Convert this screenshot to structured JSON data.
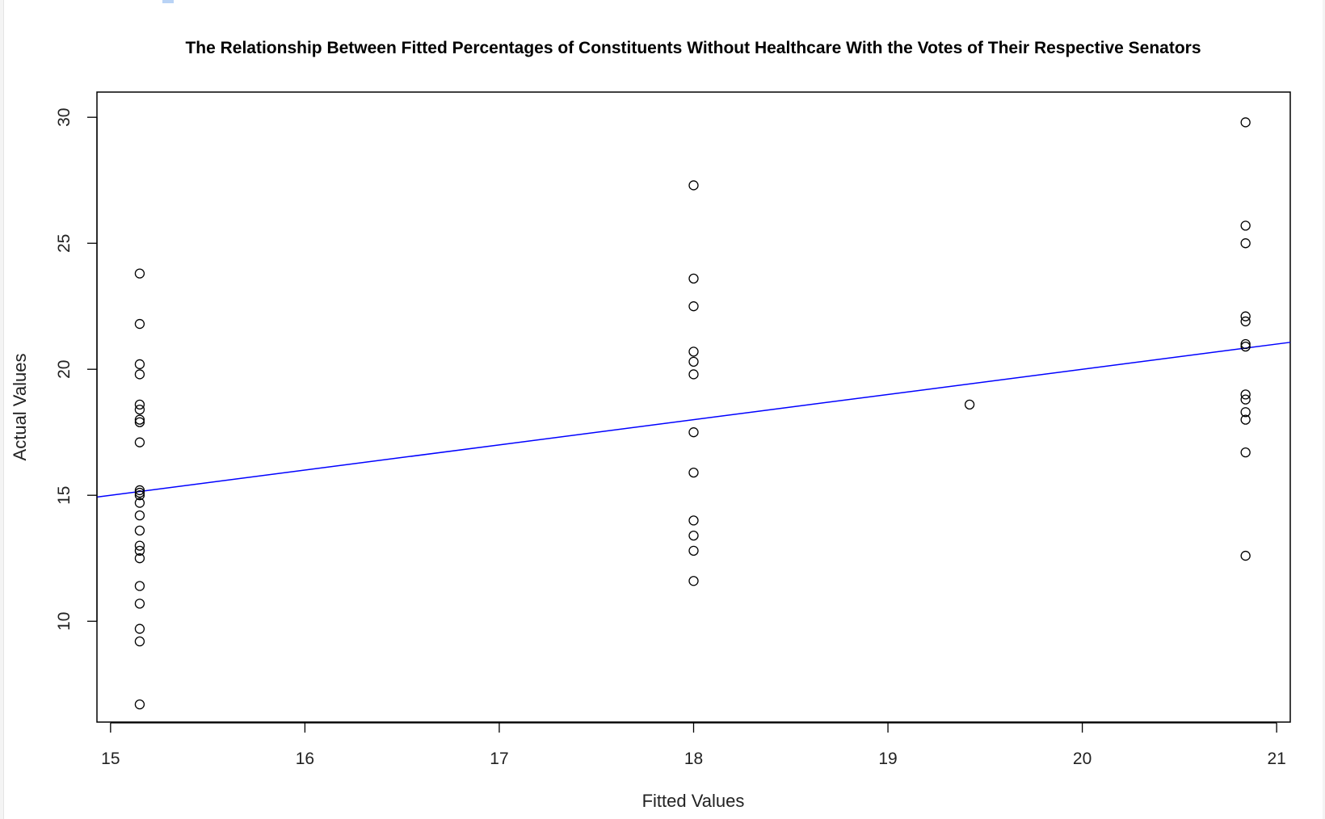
{
  "chart_data": {
    "type": "scatter",
    "title": "The Relationship Between Fitted Percentages of Constituents Without Healthcare With the Votes of Their Respective Senators",
    "xlabel": "Fitted Values",
    "ylabel": "Actual Values",
    "xlim": [
      14.93,
      21.07
    ],
    "ylim": [
      6.0,
      31.0
    ],
    "x_ticks": [
      15,
      16,
      17,
      18,
      19,
      20,
      21
    ],
    "y_ticks": [
      10,
      15,
      20,
      25,
      30
    ],
    "grid": false,
    "legend": "none",
    "marker": "open-circle",
    "points": [
      {
        "x": 15.15,
        "y": 23.8
      },
      {
        "x": 15.15,
        "y": 21.8
      },
      {
        "x": 15.15,
        "y": 20.2
      },
      {
        "x": 15.15,
        "y": 19.8
      },
      {
        "x": 15.15,
        "y": 18.6
      },
      {
        "x": 15.15,
        "y": 18.4
      },
      {
        "x": 15.15,
        "y": 18.0
      },
      {
        "x": 15.15,
        "y": 17.9
      },
      {
        "x": 15.15,
        "y": 17.1
      },
      {
        "x": 15.15,
        "y": 15.2
      },
      {
        "x": 15.15,
        "y": 15.1
      },
      {
        "x": 15.15,
        "y": 15.0
      },
      {
        "x": 15.15,
        "y": 14.7
      },
      {
        "x": 15.15,
        "y": 14.2
      },
      {
        "x": 15.15,
        "y": 13.6
      },
      {
        "x": 15.15,
        "y": 13.0
      },
      {
        "x": 15.15,
        "y": 12.8
      },
      {
        "x": 15.15,
        "y": 12.5
      },
      {
        "x": 15.15,
        "y": 11.4
      },
      {
        "x": 15.15,
        "y": 10.7
      },
      {
        "x": 15.15,
        "y": 9.7
      },
      {
        "x": 15.15,
        "y": 9.2
      },
      {
        "x": 15.15,
        "y": 6.7
      },
      {
        "x": 18.0,
        "y": 27.3
      },
      {
        "x": 18.0,
        "y": 23.6
      },
      {
        "x": 18.0,
        "y": 22.5
      },
      {
        "x": 18.0,
        "y": 20.7
      },
      {
        "x": 18.0,
        "y": 20.3
      },
      {
        "x": 18.0,
        "y": 19.8
      },
      {
        "x": 18.0,
        "y": 17.5
      },
      {
        "x": 18.0,
        "y": 15.9
      },
      {
        "x": 18.0,
        "y": 14.0
      },
      {
        "x": 18.0,
        "y": 13.4
      },
      {
        "x": 18.0,
        "y": 12.8
      },
      {
        "x": 18.0,
        "y": 11.6
      },
      {
        "x": 19.42,
        "y": 18.6
      },
      {
        "x": 20.84,
        "y": 29.8
      },
      {
        "x": 20.84,
        "y": 25.7
      },
      {
        "x": 20.84,
        "y": 25.0
      },
      {
        "x": 20.84,
        "y": 22.1
      },
      {
        "x": 20.84,
        "y": 21.9
      },
      {
        "x": 20.84,
        "y": 21.0
      },
      {
        "x": 20.84,
        "y": 20.9
      },
      {
        "x": 20.84,
        "y": 19.0
      },
      {
        "x": 20.84,
        "y": 18.8
      },
      {
        "x": 20.84,
        "y": 18.3
      },
      {
        "x": 20.84,
        "y": 18.0
      },
      {
        "x": 20.84,
        "y": 16.7
      },
      {
        "x": 20.84,
        "y": 12.6
      }
    ],
    "reference_line": {
      "intercept": 0,
      "slope": 1,
      "color": "#0000ff"
    },
    "colors": {
      "points": "#000000",
      "line": "#0000ff",
      "axis": "#000000"
    }
  }
}
